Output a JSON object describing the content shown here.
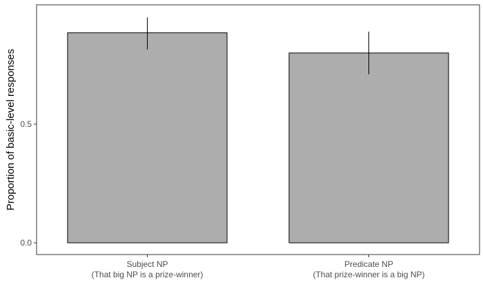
{
  "chart_data": {
    "type": "bar",
    "title": "",
    "xlabel": "",
    "ylabel": "Proportion of basic-level responses",
    "ylim": [
      -0.045,
      1.005
    ],
    "yticks": [
      0.0,
      0.5
    ],
    "ytick_labels": [
      "0.0",
      "0.5"
    ],
    "categories": [
      {
        "line1": "Subject NP",
        "line2": "(That big NP is a prize-winner)"
      },
      {
        "line1": "Predicate NP",
        "line2": "(That prize-winner is a big NP)"
      }
    ],
    "values": [
      0.885,
      0.8
    ],
    "error_bars": [
      {
        "low": 0.815,
        "high": 0.95
      },
      {
        "low": 0.71,
        "high": 0.89
      }
    ],
    "bar_fill": "#adadad",
    "bar_stroke": "#000000",
    "panel_border": "#333333",
    "grid": false
  }
}
